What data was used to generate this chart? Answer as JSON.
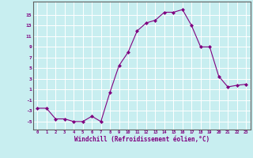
{
  "x": [
    0,
    1,
    2,
    3,
    4,
    5,
    6,
    7,
    8,
    9,
    10,
    11,
    12,
    13,
    14,
    15,
    16,
    17,
    18,
    19,
    20,
    21,
    22,
    23
  ],
  "y": [
    -2.5,
    -2.5,
    -4.5,
    -4.5,
    -5.0,
    -5.0,
    -4.0,
    -5.0,
    0.5,
    5.5,
    8.0,
    12.0,
    13.5,
    14.0,
    15.5,
    15.5,
    16.0,
    13.0,
    9.0,
    9.0,
    3.5,
    1.5,
    1.8,
    2.0
  ],
  "line_color": "#800080",
  "marker": "D",
  "marker_size": 2.0,
  "bg_color": "#c8eef0",
  "grid_color": "#ffffff",
  "xlabel": "Windchill (Refroidissement éolien,°C)",
  "xlabel_color": "#800080",
  "tick_color": "#800080",
  "yticks": [
    -5,
    -3,
    -1,
    1,
    3,
    5,
    7,
    9,
    11,
    13,
    15
  ],
  "ylim": [
    -6.5,
    17.5
  ],
  "xlim": [
    -0.5,
    23.5
  ],
  "xticks": [
    0,
    1,
    2,
    3,
    4,
    5,
    6,
    7,
    8,
    9,
    10,
    11,
    12,
    13,
    14,
    15,
    16,
    17,
    18,
    19,
    20,
    21,
    22,
    23
  ]
}
